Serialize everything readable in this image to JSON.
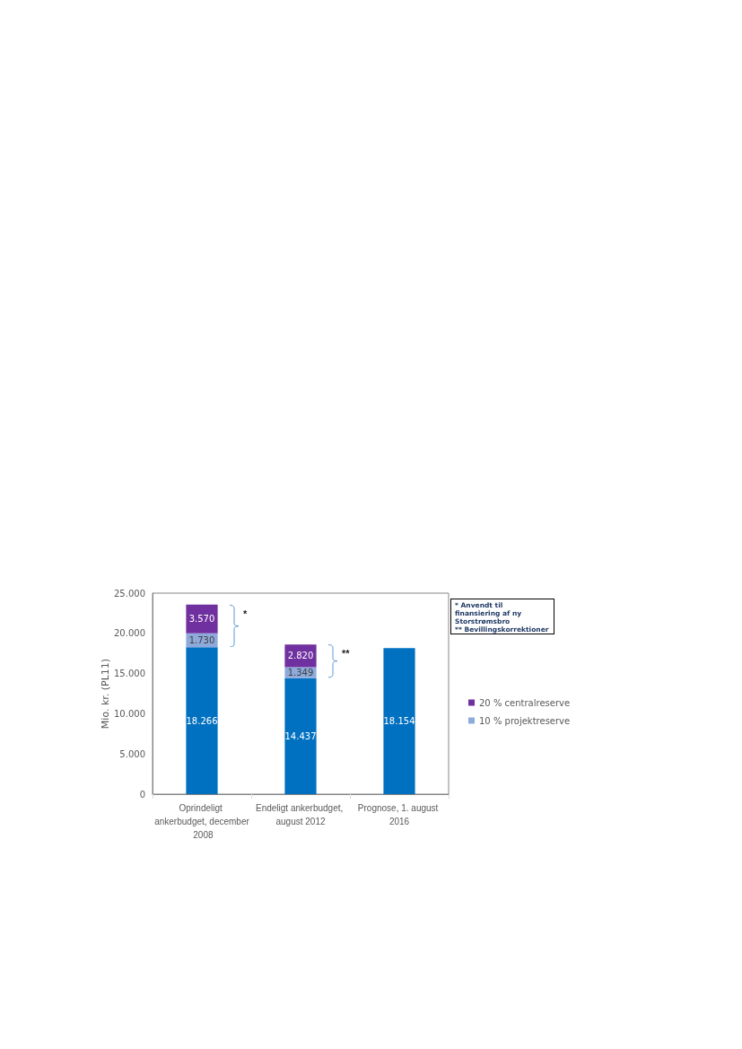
{
  "chart_data": {
    "type": "bar",
    "stacked": true,
    "ylabel": "Mio. kr. (PL11)",
    "categories": [
      "Oprindeligt ankerbudget, december 2008",
      "Endeligt ankerbudget, august 2012",
      "Prognose, 1. august 2016"
    ],
    "series": [
      {
        "color": "#0070c0",
        "values": [
          18266,
          14437,
          18154
        ],
        "value_labels": [
          "18.266",
          "14.437",
          "18.154"
        ]
      },
      {
        "name": "10 % projektreserve",
        "color": "#8eaadb",
        "values": [
          1730,
          1349,
          null
        ],
        "value_labels": [
          "1.730",
          "1.349",
          null
        ]
      },
      {
        "name": "20 % centralreserve",
        "color": "#7030a0",
        "values": [
          3570,
          2820,
          null
        ],
        "value_labels": [
          "3.570",
          "2.820",
          null
        ]
      }
    ],
    "ylim": [
      0,
      25000
    ],
    "yticks": [
      {
        "value": 0,
        "label": "0"
      },
      {
        "value": 5000,
        "label": "5.000"
      },
      {
        "value": 10000,
        "label": "10.000"
      },
      {
        "value": 15000,
        "label": "15.000"
      },
      {
        "value": 20000,
        "label": "20.000"
      },
      {
        "value": 25000,
        "label": "25.000"
      }
    ],
    "grid": false,
    "legend": "right",
    "annotations": [
      "*",
      "**",
      "* Anvendt til finansiering af ny Storstrømsbro",
      "** Bevillingskorrektioner"
    ]
  }
}
